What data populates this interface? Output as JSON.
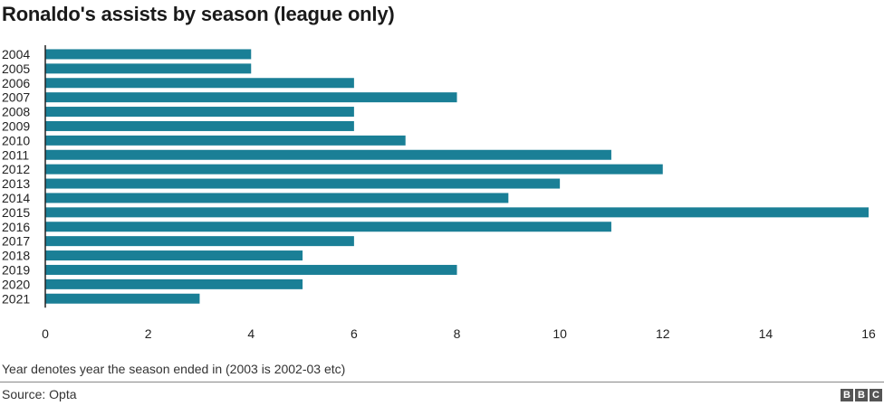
{
  "chart_data": {
    "type": "bar",
    "orientation": "horizontal",
    "title": "Ronaldo's assists by season (league only)",
    "categories": [
      "2004",
      "2005",
      "2006",
      "2007",
      "2008",
      "2009",
      "2010",
      "2011",
      "2012",
      "2013",
      "2014",
      "2015",
      "2016",
      "2017",
      "2018",
      "2019",
      "2020",
      "2021"
    ],
    "values": [
      4,
      4,
      6,
      8,
      6,
      6,
      7,
      11,
      12,
      10,
      9,
      16,
      11,
      6,
      5,
      8,
      5,
      3
    ],
    "xlim": [
      0,
      16
    ],
    "xticks": [
      0,
      2,
      4,
      6,
      8,
      10,
      12,
      14,
      16
    ],
    "xlabel": "",
    "ylabel": "",
    "grid": false,
    "bar_color": "#1a7f96"
  },
  "footnote": "Year denotes year the season ended in (2003 is 2002-03 etc)",
  "source": "Source: Opta",
  "logo": {
    "letters": [
      "B",
      "B",
      "C"
    ],
    "icon": "bbc-logo"
  }
}
